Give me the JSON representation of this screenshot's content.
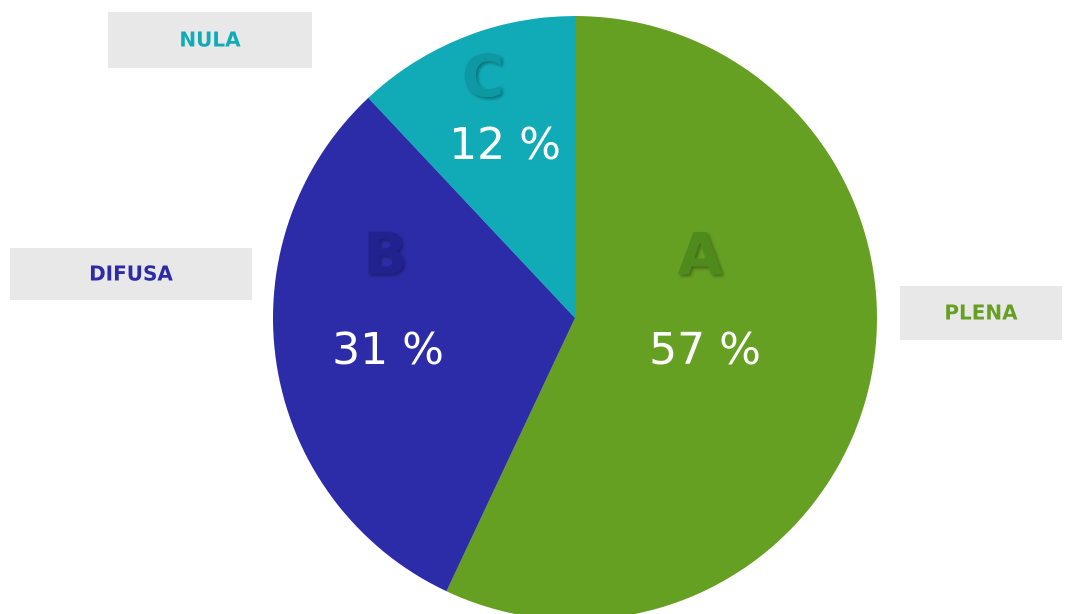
{
  "chart_data": {
    "type": "pie",
    "categories": [
      "PLENA",
      "DIFUSA",
      "NULA"
    ],
    "slice_labels": [
      "A",
      "B",
      "C"
    ],
    "values": [
      57,
      31,
      12
    ],
    "value_labels": [
      "57 %",
      "31 %",
      "12 %"
    ],
    "colors": [
      "#66a023",
      "#2c2ca8",
      "#11abb8"
    ]
  }
}
